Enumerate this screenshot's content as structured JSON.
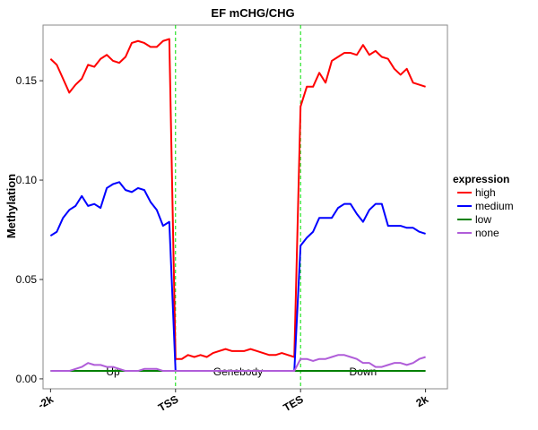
{
  "chart_data": {
    "type": "line",
    "title": "EF mCHG/CHG",
    "xlabel": "",
    "ylabel": "Methylation",
    "ylim": [
      -0.005,
      0.178
    ],
    "y_ticks": [
      "0.00",
      "0.05",
      "0.10",
      "0.15"
    ],
    "y_tick_values": [
      0.0,
      0.05,
      0.1,
      0.15
    ],
    "x_ticks": [
      "-2k",
      "TSS",
      "TES",
      "2k"
    ],
    "x_tick_positions": [
      0,
      20,
      40,
      60
    ],
    "xlim": [
      -1.2,
      63.5
    ],
    "boundary_lines": [
      20,
      40
    ],
    "regions": [
      "Up",
      "Genebody",
      "Down"
    ],
    "legend_title": "expression",
    "legend_position": "right",
    "grid": false,
    "x": [
      0,
      1,
      2,
      3,
      4,
      5,
      6,
      7,
      8,
      9,
      10,
      11,
      12,
      13,
      14,
      15,
      16,
      17,
      18,
      19,
      20,
      21,
      22,
      23,
      24,
      25,
      26,
      27,
      28,
      29,
      30,
      31,
      32,
      33,
      34,
      35,
      36,
      37,
      38,
      39,
      40,
      41,
      42,
      43,
      44,
      45,
      46,
      47,
      48,
      49,
      50,
      51,
      52,
      53,
      54,
      55,
      56,
      57,
      58,
      59,
      60
    ],
    "series": [
      {
        "name": "high",
        "color": "#ff0000",
        "values": [
          0.161,
          0.158,
          0.151,
          0.144,
          0.148,
          0.151,
          0.158,
          0.157,
          0.161,
          0.163,
          0.16,
          0.159,
          0.162,
          0.169,
          0.17,
          0.169,
          0.167,
          0.167,
          0.17,
          0.171,
          0.01,
          0.01,
          0.012,
          0.011,
          0.012,
          0.011,
          0.013,
          0.014,
          0.015,
          0.014,
          0.014,
          0.014,
          0.015,
          0.014,
          0.013,
          0.012,
          0.012,
          0.013,
          0.012,
          0.011,
          0.137,
          0.147,
          0.147,
          0.154,
          0.149,
          0.16,
          0.162,
          0.164,
          0.164,
          0.163,
          0.168,
          0.163,
          0.165,
          0.162,
          0.161,
          0.156,
          0.153,
          0.156,
          0.149,
          0.148,
          0.147
        ]
      },
      {
        "name": "medium",
        "color": "#0000ff",
        "values": [
          0.072,
          0.074,
          0.081,
          0.085,
          0.087,
          0.092,
          0.087,
          0.088,
          0.086,
          0.096,
          0.098,
          0.099,
          0.095,
          0.094,
          0.096,
          0.095,
          0.089,
          0.085,
          0.077,
          0.079,
          0.004,
          0.004,
          0.004,
          0.004,
          0.004,
          0.004,
          0.004,
          0.004,
          0.004,
          0.004,
          0.004,
          0.004,
          0.004,
          0.004,
          0.004,
          0.004,
          0.004,
          0.004,
          0.004,
          0.004,
          0.067,
          0.071,
          0.074,
          0.081,
          0.081,
          0.081,
          0.086,
          0.088,
          0.088,
          0.083,
          0.079,
          0.085,
          0.088,
          0.088,
          0.077,
          0.077,
          0.077,
          0.076,
          0.076,
          0.074,
          0.073
        ]
      },
      {
        "name": "low",
        "color": "#008000",
        "values": [
          0.004,
          0.004,
          0.004,
          0.004,
          0.004,
          0.004,
          0.004,
          0.004,
          0.004,
          0.004,
          0.004,
          0.004,
          0.004,
          0.004,
          0.004,
          0.004,
          0.004,
          0.004,
          0.004,
          0.004,
          0.004,
          0.004,
          0.004,
          0.004,
          0.004,
          0.004,
          0.004,
          0.004,
          0.004,
          0.004,
          0.004,
          0.004,
          0.004,
          0.004,
          0.004,
          0.004,
          0.004,
          0.004,
          0.004,
          0.004,
          0.004,
          0.004,
          0.004,
          0.004,
          0.004,
          0.004,
          0.004,
          0.004,
          0.004,
          0.004,
          0.004,
          0.004,
          0.004,
          0.004,
          0.004,
          0.004,
          0.004,
          0.004,
          0.004,
          0.004,
          0.004
        ]
      },
      {
        "name": "none",
        "color": "#b05dd9",
        "values": [
          0.004,
          0.004,
          0.004,
          0.004,
          0.005,
          0.006,
          0.008,
          0.007,
          0.007,
          0.006,
          0.006,
          0.005,
          0.004,
          0.004,
          0.004,
          0.005,
          0.005,
          0.005,
          0.004,
          0.004,
          0.004,
          0.004,
          0.004,
          0.004,
          0.004,
          0.004,
          0.004,
          0.004,
          0.004,
          0.004,
          0.004,
          0.004,
          0.004,
          0.004,
          0.004,
          0.004,
          0.004,
          0.004,
          0.004,
          0.004,
          0.01,
          0.01,
          0.009,
          0.01,
          0.01,
          0.011,
          0.012,
          0.012,
          0.011,
          0.01,
          0.008,
          0.008,
          0.006,
          0.006,
          0.007,
          0.008,
          0.008,
          0.007,
          0.008,
          0.01,
          0.011
        ]
      }
    ]
  }
}
